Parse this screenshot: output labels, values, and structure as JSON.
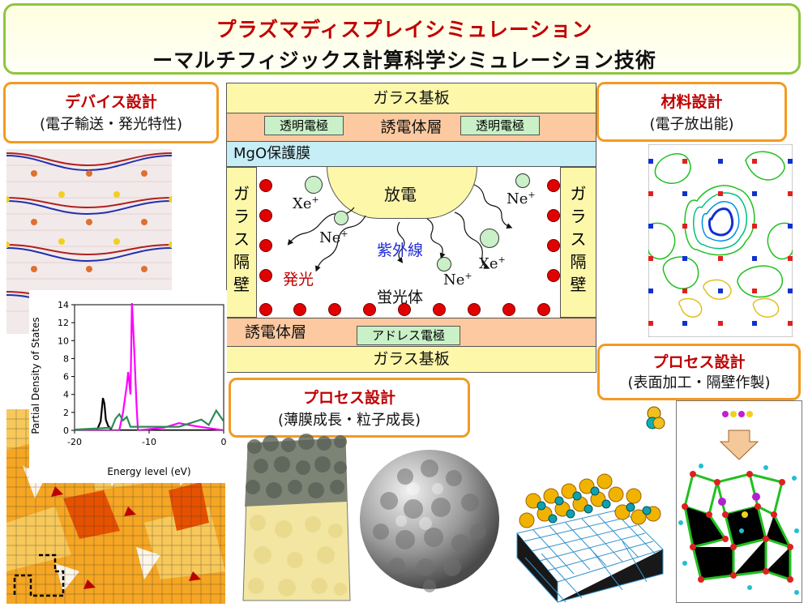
{
  "header": {
    "title": "プラズマディスプレイシミュレーション",
    "subtitle": "ーマルチフィジックス計算科学シミュレーション技術"
  },
  "boxes": {
    "device": {
      "title": "デバイス設計",
      "sub": "(電子輸送・発光特性)"
    },
    "material": {
      "title": "材料設計",
      "sub": "(電子放出能)"
    },
    "process_film": {
      "title": "プロセス設計",
      "sub": "(薄膜成長・粒子成長)"
    },
    "process_surface": {
      "title": "プロセス設計",
      "sub": "(表面加工・隔壁作製)"
    }
  },
  "panel": {
    "glass_top": "ガラス基板",
    "dielectric_top": "誘電体層",
    "electrode_left": "透明電極",
    "electrode_right": "透明電極",
    "mgo": "MgO保護膜",
    "rib_left": [
      "ガ",
      "ラ",
      "ス",
      "隔",
      "壁"
    ],
    "rib_right": [
      "ガ",
      "ラ",
      "ス",
      "隔",
      "壁"
    ],
    "discharge": "放電",
    "uv": "紫外線",
    "emission": "発光",
    "phosphor": "蛍光体",
    "dielectric_bottom": "誘電体層",
    "address_electrode": "アドレス電極",
    "glass_bottom": "ガラス基板",
    "particles": [
      {
        "name": "Xe",
        "charge": "+"
      },
      {
        "name": "Ne",
        "charge": "+"
      },
      {
        "name": "Ne",
        "charge": "+"
      },
      {
        "name": "Ne",
        "charge": "+"
      },
      {
        "name": "Xe",
        "charge": "+"
      }
    ]
  },
  "chart_data": {
    "type": "line",
    "xlabel": "Energy level (eV)",
    "ylabel": "Partial Density of States",
    "xlim": [
      -20,
      0
    ],
    "ylim": [
      0,
      14
    ],
    "xticks": [
      "-20",
      "-10",
      "0"
    ],
    "yticks": [
      "0",
      "2",
      "4",
      "6",
      "8",
      "10",
      "12",
      "14"
    ],
    "series": [
      {
        "color": "#000000",
        "x": [
          -22,
          -17,
          -16.5,
          -16.2,
          -16,
          -15.8,
          -15.5,
          -15,
          -12,
          -5,
          0
        ],
        "y": [
          0,
          0,
          1,
          3.6,
          3,
          1.2,
          0.5,
          0,
          0,
          0,
          0
        ]
      },
      {
        "color": "#ff00ff",
        "x": [
          -22,
          -14,
          -13.5,
          -13,
          -12.8,
          -12.5,
          -12.3,
          -12,
          -11.7,
          -11.5,
          -8,
          -6,
          -4,
          0
        ],
        "y": [
          0,
          0,
          2,
          5,
          6.5,
          4,
          14.3,
          9,
          3,
          0,
          0.3,
          0.8,
          0.5,
          0
        ]
      },
      {
        "color": "#2e8b57",
        "x": [
          -22,
          -15,
          -14.5,
          -14,
          -13.5,
          -13,
          -12.5,
          -6,
          -3,
          -2,
          -1,
          0
        ],
        "y": [
          0,
          0.3,
          1.3,
          1.8,
          1.1,
          1.5,
          0.4,
          0.4,
          1.2,
          0.6,
          2.2,
          1.0
        ]
      }
    ]
  },
  "colors": {
    "title_red": "#c00000",
    "border_orange": "#f39a21",
    "border_green": "#8dc63f",
    "glass": "#fdf7a9",
    "dielectric": "#fcc9a0",
    "mgo": "#c6eef7",
    "electrode": "#c9f0c6",
    "phosphor_dot": "#e00000",
    "uv_text": "#1f2bd8"
  }
}
